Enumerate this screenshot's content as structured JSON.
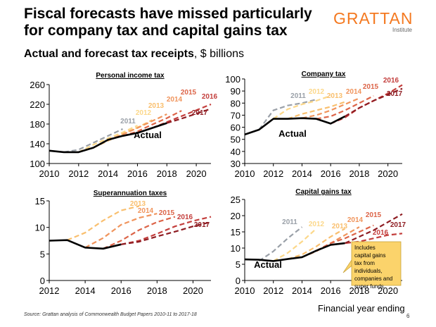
{
  "header": {
    "title": "Fiscal forecasts have missed particularly for company tax and capital gains tax",
    "logo_main": "GRATTAN",
    "logo_sub": "Institute",
    "subtitle_bold": "Actual and forecast tax receipts",
    "subtitle_rest": ", $ billions"
  },
  "footer": {
    "source": "Source: Grattan analysis of Commonwealth Budget Papers 2010-11 to 2017-18",
    "x_axis_label": "Financial year ending",
    "page_number": "6"
  },
  "colors": {
    "actual": "#000000",
    "2011": "#9aa0a8",
    "2012": "#fcd88a",
    "2013": "#f9bf6e",
    "2014": "#f0945c",
    "2015": "#dc6448",
    "2016": "#c33e3c",
    "2017": "#8e1c22"
  },
  "chart_data": [
    {
      "type": "line",
      "title": "Personal income tax",
      "xlim": [
        2010,
        2021
      ],
      "ylim": [
        100,
        260
      ],
      "xticks": [
        2010,
        2012,
        2014,
        2016,
        2018,
        2020
      ],
      "yticks": [
        100,
        140,
        180,
        220,
        260
      ],
      "actual_label": "Actual",
      "series": [
        {
          "name": "Actual",
          "key": "actual",
          "x": [
            2010,
            2011,
            2012,
            2013,
            2014,
            2015,
            2016,
            2017,
            2018
          ],
          "y": [
            126,
            123,
            123,
            132,
            148,
            156,
            162,
            172,
            182
          ]
        },
        {
          "name": "2011",
          "key": "2011",
          "x": [
            2011,
            2012,
            2013,
            2014,
            2015
          ],
          "y": [
            123,
            128,
            142,
            156,
            170
          ]
        },
        {
          "name": "2012",
          "key": "2012",
          "x": [
            2012,
            2013,
            2014,
            2015,
            2016
          ],
          "y": [
            123,
            138,
            151,
            163,
            177
          ]
        },
        {
          "name": "2013",
          "key": "2013",
          "x": [
            2013,
            2014,
            2015,
            2016,
            2017
          ],
          "y": [
            132,
            146,
            160,
            173,
            188
          ]
        },
        {
          "name": "2014",
          "key": "2014",
          "x": [
            2014,
            2015,
            2016,
            2017,
            2018
          ],
          "y": [
            148,
            159,
            172,
            186,
            200
          ]
        },
        {
          "name": "2015",
          "key": "2015",
          "x": [
            2015,
            2016,
            2017,
            2018,
            2019
          ],
          "y": [
            156,
            165,
            179,
            192,
            207
          ]
        },
        {
          "name": "2016",
          "key": "2016",
          "x": [
            2016,
            2017,
            2018,
            2019,
            2020,
            2021
          ],
          "y": [
            162,
            172,
            184,
            196,
            208,
            220
          ]
        },
        {
          "name": "2017",
          "key": "2017",
          "x": [
            2017,
            2018,
            2019,
            2020,
            2021
          ],
          "y": [
            172,
            182,
            191,
            201,
            211
          ]
        }
      ]
    },
    {
      "type": "line",
      "title": "Company tax",
      "xlim": [
        2010,
        2021
      ],
      "ylim": [
        30,
        100
      ],
      "xticks": [
        2010,
        2012,
        2014,
        2016,
        2018,
        2020
      ],
      "yticks": [
        30,
        40,
        50,
        60,
        70,
        80,
        90,
        100
      ],
      "actual_label": "Actual",
      "series": [
        {
          "name": "Actual",
          "key": "actual",
          "x": [
            2010,
            2011,
            2012,
            2013,
            2014,
            2015,
            2016,
            2017
          ],
          "y": [
            54,
            58,
            67,
            67,
            67.5,
            67,
            63,
            69
          ]
        },
        {
          "name": "2011",
          "key": "2011",
          "x": [
            2011,
            2012,
            2013,
            2014,
            2015
          ],
          "y": [
            58,
            74,
            78,
            80,
            83
          ]
        },
        {
          "name": "2012",
          "key": "2012",
          "x": [
            2012,
            2013,
            2014,
            2015,
            2016
          ],
          "y": [
            67,
            75,
            79,
            82,
            86
          ]
        },
        {
          "name": "2013",
          "key": "2013",
          "x": [
            2013,
            2014,
            2015,
            2016,
            2017
          ],
          "y": [
            67,
            71,
            74,
            77,
            81
          ]
        },
        {
          "name": "2014",
          "key": "2014",
          "x": [
            2014,
            2015,
            2016,
            2017,
            2018
          ],
          "y": [
            67.5,
            70,
            74,
            79,
            84
          ]
        },
        {
          "name": "2015",
          "key": "2015",
          "x": [
            2015,
            2016,
            2017,
            2018,
            2019
          ],
          "y": [
            67,
            69,
            74,
            80,
            86
          ]
        },
        {
          "name": "2016",
          "key": "2016",
          "x": [
            2016,
            2017,
            2018,
            2019,
            2020,
            2021
          ],
          "y": [
            63,
            68,
            76,
            82,
            88,
            95
          ]
        },
        {
          "name": "2017",
          "key": "2017",
          "x": [
            2017,
            2018,
            2019,
            2020,
            2021
          ],
          "y": [
            69,
            76,
            82,
            87,
            92
          ]
        }
      ]
    },
    {
      "type": "line",
      "title": "Superannuation taxes",
      "xlim": [
        2012,
        2021
      ],
      "ylim": [
        0,
        15
      ],
      "xticks": [
        2012,
        2014,
        2016,
        2018,
        2020
      ],
      "yticks": [
        0,
        5,
        10,
        15
      ],
      "series": [
        {
          "name": "Actual",
          "key": "actual",
          "x": [
            2012,
            2013,
            2014,
            2015,
            2016
          ],
          "y": [
            7.5,
            7.6,
            6.2,
            6.0,
            6.8
          ]
        },
        {
          "name": "2013",
          "key": "2013",
          "x": [
            2013,
            2014,
            2015,
            2016,
            2017
          ],
          "y": [
            7.6,
            9.0,
            11.3,
            13.2,
            14.0
          ]
        },
        {
          "name": "2014",
          "key": "2014",
          "x": [
            2014,
            2015,
            2016,
            2017,
            2018
          ],
          "y": [
            6.2,
            8.0,
            10.5,
            11.8,
            12.6
          ]
        },
        {
          "name": "2015",
          "key": "2015",
          "x": [
            2015,
            2016,
            2017,
            2018,
            2019
          ],
          "y": [
            6.0,
            7.5,
            9.5,
            11.0,
            12.0
          ]
        },
        {
          "name": "2016",
          "key": "2016",
          "x": [
            2016,
            2017,
            2018,
            2019,
            2020,
            2021
          ],
          "y": [
            6.8,
            7.5,
            8.8,
            10.2,
            11.2,
            12.0
          ]
        },
        {
          "name": "2017",
          "key": "2017",
          "x": [
            2016,
            2017,
            2018,
            2019,
            2020,
            2021
          ],
          "y": [
            6.8,
            7.3,
            8.3,
            9.2,
            10.2,
            11.0
          ]
        }
      ]
    },
    {
      "type": "line",
      "title": "Capital gains tax",
      "xlim": [
        2010,
        2021
      ],
      "ylim": [
        0,
        25
      ],
      "xticks": [
        2010,
        2012,
        2014,
        2016,
        2018,
        2020
      ],
      "yticks": [
        0,
        5,
        10,
        15,
        20,
        25
      ],
      "actual_label": "Actual",
      "note": "Includes capital gains tax from individuals, companies and super funds",
      "series": [
        {
          "name": "Actual",
          "key": "actual",
          "x": [
            2010,
            2011,
            2012,
            2013,
            2014,
            2015,
            2016,
            2017
          ],
          "y": [
            6.5,
            6.4,
            6.0,
            6.6,
            7.2,
            9.2,
            11.0,
            11.5
          ]
        },
        {
          "name": "2011",
          "key": "2011",
          "x": [
            2011,
            2012,
            2013,
            2014
          ],
          "y": [
            6.0,
            9.0,
            13.0,
            16.5
          ]
        },
        {
          "name": "2012",
          "key": "2012",
          "x": [
            2012,
            2013,
            2014,
            2015
          ],
          "y": [
            6.0,
            8.5,
            12.0,
            16.0
          ]
        },
        {
          "name": "2013",
          "key": "2013",
          "x": [
            2013,
            2014,
            2015,
            2016,
            2017
          ],
          "y": [
            6.6,
            8.0,
            10.5,
            13.5,
            16.0
          ]
        },
        {
          "name": "2014",
          "key": "2014",
          "x": [
            2014,
            2015,
            2016,
            2017,
            2018
          ],
          "y": [
            7.2,
            9.0,
            11.5,
            14.0,
            16.5
          ]
        },
        {
          "name": "2015",
          "key": "2015",
          "x": [
            2015,
            2016,
            2017,
            2018,
            2019
          ],
          "y": [
            9.2,
            11.5,
            13.0,
            15.0,
            17.0
          ]
        },
        {
          "name": "2016",
          "key": "2016",
          "x": [
            2016,
            2017,
            2018,
            2019,
            2020,
            2021
          ],
          "y": [
            11.0,
            11.5,
            12.0,
            13.0,
            14.0,
            14.5
          ]
        },
        {
          "name": "2017",
          "key": "2017",
          "x": [
            2017,
            2018,
            2019,
            2020,
            2021
          ],
          "y": [
            11.5,
            13.5,
            15.5,
            18.0,
            20.5
          ]
        }
      ]
    }
  ]
}
